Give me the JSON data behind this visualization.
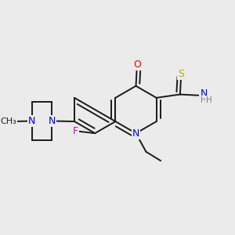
{
  "bg_color": "#ebebeb",
  "bond_color": "#1a1a1a",
  "atom_colors": {
    "N": "#0000e0",
    "O": "#ee0000",
    "S": "#aaaa00",
    "F": "#dd00dd",
    "C": "#1a1a1a",
    "H": "#708090"
  },
  "lw": 1.4,
  "fs_large": 9.0,
  "fs_small": 8.0
}
